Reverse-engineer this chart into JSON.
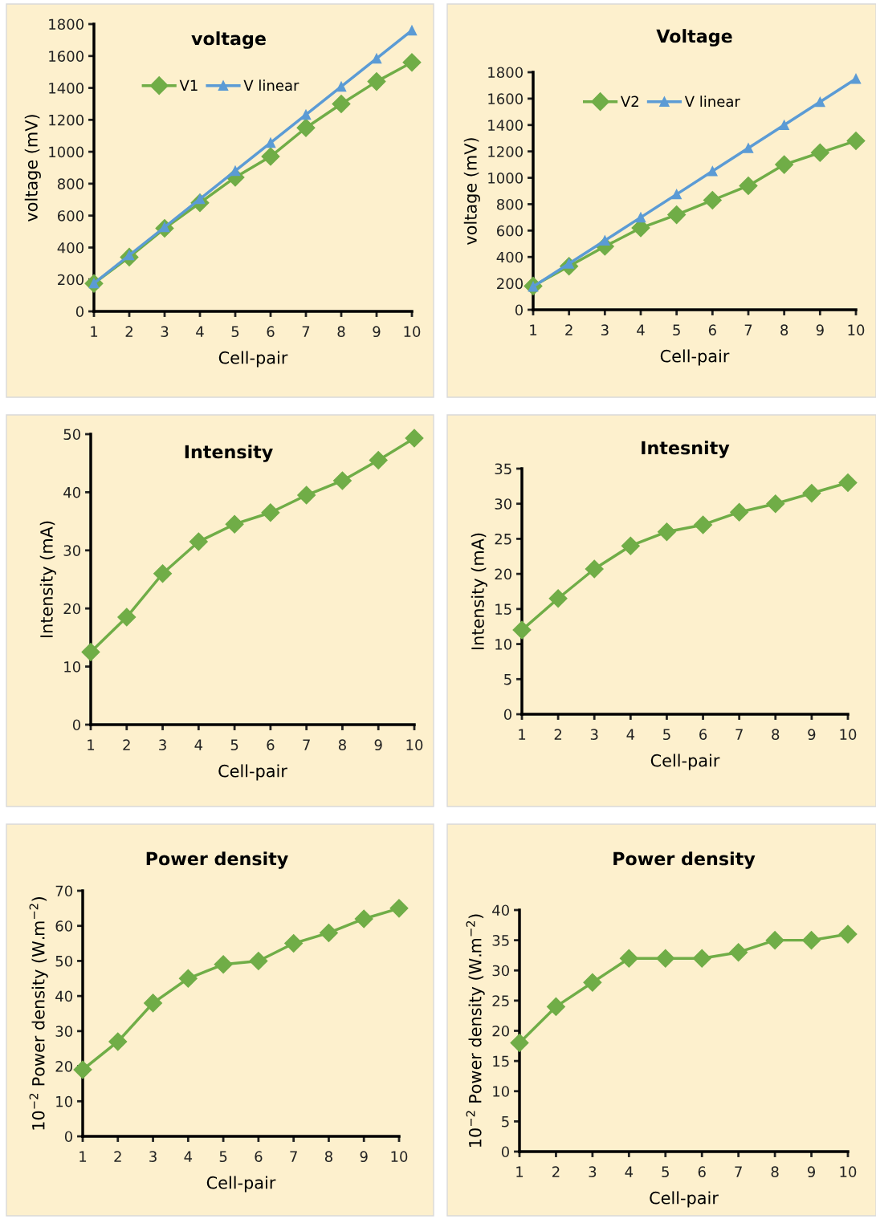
{
  "chart_data": [
    {
      "type": "line",
      "title": "voltage",
      "xlabel": "Cell-pair",
      "ylabel": "voltage (mV)",
      "x": [
        1,
        2,
        3,
        4,
        5,
        6,
        7,
        8,
        9,
        10
      ],
      "xlim": [
        1,
        10
      ],
      "xticks": [
        1,
        2,
        3,
        4,
        5,
        6,
        7,
        8,
        9,
        10
      ],
      "ylim": [
        0,
        1800
      ],
      "yticks": [
        0,
        200,
        400,
        600,
        800,
        1000,
        1200,
        1400,
        1600,
        1800
      ],
      "grid": false,
      "legend": "top",
      "line_style": "solid",
      "series": [
        {
          "name": "V1",
          "color": "#70ad47",
          "marker": "diamond",
          "values": [
            175,
            340,
            520,
            680,
            840,
            970,
            1150,
            1300,
            1440,
            1560
          ]
        },
        {
          "name": "V linear",
          "color": "#5b9bd5",
          "marker": "triangle",
          "values": [
            176,
            352,
            528,
            704,
            880,
            1056,
            1232,
            1408,
            1584,
            1760
          ]
        }
      ]
    },
    {
      "type": "line",
      "title": "Voltage",
      "xlabel": "Cell-pair",
      "ylabel": "voltage (mV)",
      "x": [
        1,
        2,
        3,
        4,
        5,
        6,
        7,
        8,
        9,
        10
      ],
      "xlim": [
        1,
        10
      ],
      "xticks": [
        1,
        2,
        3,
        4,
        5,
        6,
        7,
        8,
        9,
        10
      ],
      "ylim": [
        0,
        1800
      ],
      "yticks": [
        0,
        200,
        400,
        600,
        800,
        1000,
        1200,
        1400,
        1600,
        1800
      ],
      "grid": false,
      "legend": "top",
      "line_style": "solid",
      "series": [
        {
          "name": "V2",
          "color": "#70ad47",
          "marker": "diamond",
          "values": [
            180,
            330,
            480,
            620,
            720,
            830,
            940,
            1100,
            1190,
            1280
          ]
        },
        {
          "name": "V linear",
          "color": "#5b9bd5",
          "marker": "triangle",
          "values": [
            175,
            350,
            525,
            700,
            875,
            1050,
            1225,
            1400,
            1575,
            1750
          ]
        }
      ]
    },
    {
      "type": "line",
      "title": "Intensity",
      "xlabel": "Cell-pair",
      "ylabel": "Intensity (mA)",
      "x": [
        1,
        2,
        3,
        4,
        5,
        6,
        7,
        8,
        9,
        10
      ],
      "xlim": [
        1,
        10
      ],
      "xticks": [
        1,
        2,
        3,
        4,
        5,
        6,
        7,
        8,
        9,
        10
      ],
      "ylim": [
        0,
        50
      ],
      "yticks": [
        0,
        10,
        20,
        30,
        40,
        50
      ],
      "grid": false,
      "legend": false,
      "line_style": "solid",
      "series": [
        {
          "color": "#70ad47",
          "marker": "diamond",
          "values": [
            12.5,
            18.5,
            26,
            31.5,
            34.5,
            36.5,
            39.5,
            42,
            45.5,
            49.3
          ]
        }
      ]
    },
    {
      "type": "line",
      "title": "Intesnity",
      "xlabel": "Cell-pair",
      "ylabel": "Intensity (mA)",
      "x": [
        1,
        2,
        3,
        4,
        5,
        6,
        7,
        8,
        9,
        10
      ],
      "xlim": [
        1,
        10
      ],
      "xticks": [
        1,
        2,
        3,
        4,
        5,
        6,
        7,
        8,
        9,
        10
      ],
      "ylim": [
        0,
        35
      ],
      "yticks": [
        0,
        5,
        10,
        15,
        20,
        25,
        30,
        35
      ],
      "grid": false,
      "legend": false,
      "line_style": "solid",
      "series": [
        {
          "color": "#70ad47",
          "marker": "diamond",
          "values": [
            12,
            16.5,
            20.7,
            24,
            26,
            27,
            28.8,
            30,
            31.5,
            33
          ]
        }
      ]
    },
    {
      "type": "line",
      "title": "Power density",
      "xlabel": "Cell-pair",
      "ylabel": "10$^{−2}$ Power density (W.m$^{−2}$)",
      "x": [
        1,
        2,
        3,
        4,
        5,
        6,
        7,
        8,
        9,
        10
      ],
      "xlim": [
        1,
        10
      ],
      "xticks": [
        1,
        2,
        3,
        4,
        5,
        6,
        7,
        8,
        9,
        10
      ],
      "ylim": [
        0,
        70
      ],
      "yticks": [
        0,
        10,
        20,
        30,
        40,
        50,
        60,
        70
      ],
      "grid": false,
      "legend": false,
      "line_style": "solid",
      "series": [
        {
          "color": "#70ad47",
          "marker": "diamond",
          "values": [
            19,
            27,
            38,
            45,
            49,
            50,
            55,
            58,
            62,
            65
          ]
        }
      ]
    },
    {
      "type": "line",
      "title": "Power density",
      "xlabel": "Cell-pair",
      "ylabel": "10$^{−2}$ Power density (W.m$^{−2}$)",
      "x": [
        1,
        2,
        3,
        4,
        5,
        6,
        7,
        8,
        9,
        10
      ],
      "xlim": [
        1,
        10
      ],
      "xticks": [
        1,
        2,
        3,
        4,
        5,
        6,
        7,
        8,
        9,
        10
      ],
      "ylim": [
        0,
        40
      ],
      "yticks": [
        0,
        5,
        10,
        15,
        20,
        25,
        30,
        35,
        40
      ],
      "grid": false,
      "legend": false,
      "line_style": "solid",
      "series": [
        {
          "color": "#70ad47",
          "marker": "diamond",
          "values": [
            18,
            24,
            28,
            32,
            32,
            32,
            33,
            35,
            35,
            36
          ]
        }
      ]
    }
  ]
}
